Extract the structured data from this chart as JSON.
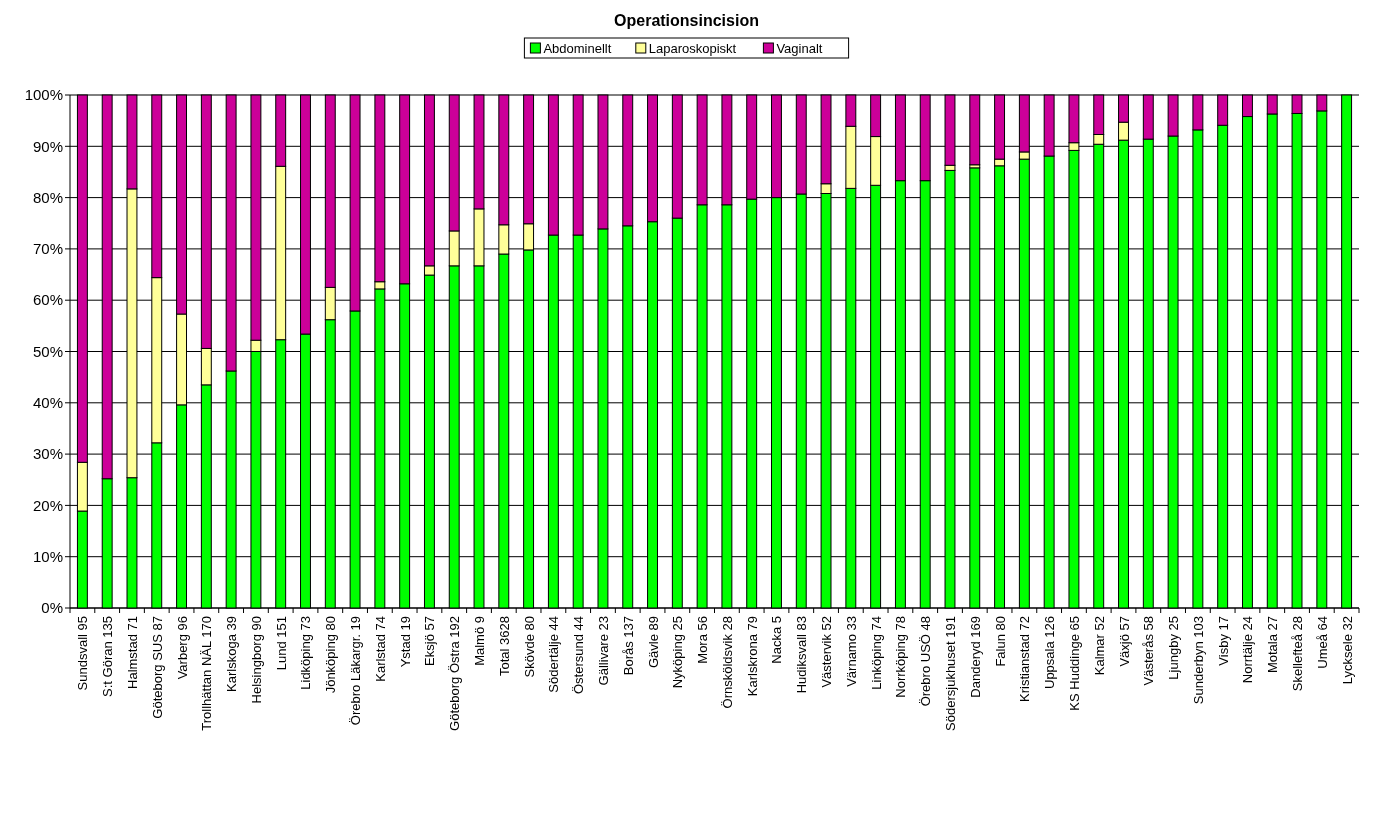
{
  "chart_data": {
    "type": "bar",
    "title": "Operationsincision",
    "stacked": true,
    "grid": "y",
    "legend": "top",
    "categories": [
      "Sundsvall 95",
      "S:t Göran 135",
      "Halmstad 71",
      "Göteborg SUS 87",
      "Varberg 96",
      "Trollhättan NÄL 170",
      "Karlskoga 39",
      "Helsingborg 90",
      "Lund 151",
      "Lidköping 73",
      "Jönköping 80",
      "Örebro Läkargr. 19",
      "Karlstad 74",
      "Ystad 19",
      "Eksjö 57",
      "Göteborg Östra 192",
      "Malmö 9",
      "Total 3628",
      "Skövde 80",
      "Södertälje 44",
      "Östersund 44",
      "Gällivare 23",
      "Borås 137",
      "Gävle 89",
      "Nyköping 25",
      "Mora 56",
      "Örnsköldsvik 28",
      "Karlskrona 79",
      "Nacka 5",
      "Hudiksvall 83",
      "Västervik 52",
      "Värnamo 33",
      "Linköping 74",
      "Norrköping 78",
      "Örebro USÖ 48",
      "Södersjukhuset 191",
      "Danderyd 169",
      "Falun 80",
      "Kristianstad 72",
      "Uppsala 126",
      "KS Huddinge 65",
      "Kalmar 52",
      "Växjö 57",
      "Västerås 58",
      "Ljungby 25",
      "Sunderbyn 103",
      "Visby 17",
      "Norrtälje 24",
      "Motala 27",
      "Skellefteå 28",
      "Umeå 64",
      "Lycksele 32"
    ],
    "series": [
      {
        "name": "Abdominellt",
        "color": "#00ff00",
        "values": [
          18.9,
          25.2,
          25.4,
          32.2,
          39.6,
          43.5,
          46.2,
          50.0,
          52.3,
          53.4,
          56.2,
          57.9,
          62.2,
          63.2,
          64.9,
          66.7,
          66.7,
          69.0,
          69.8,
          72.7,
          72.7,
          73.9,
          74.5,
          75.3,
          76.0,
          78.6,
          78.6,
          79.7,
          80.0,
          80.7,
          80.8,
          81.8,
          82.4,
          83.3,
          83.3,
          85.3,
          85.8,
          86.2,
          87.5,
          88.1,
          89.2,
          90.4,
          91.2,
          91.4,
          92.0,
          93.2,
          94.1,
          95.8,
          96.3,
          96.4,
          96.9,
          100
        ]
      },
      {
        "name": "Laparoskopiskt",
        "color": "#ffff99",
        "values": [
          9.5,
          0,
          56.3,
          32.2,
          17.7,
          7.1,
          0,
          2.2,
          33.8,
          0,
          6.3,
          0,
          1.4,
          0,
          1.8,
          6.8,
          11.1,
          5.7,
          5.1,
          0,
          0,
          0,
          0,
          0,
          0,
          0,
          0,
          0,
          0,
          0,
          1.9,
          12.1,
          9.5,
          0,
          0,
          1.0,
          0.6,
          1.3,
          1.4,
          0,
          1.5,
          1.9,
          3.5,
          0,
          0,
          0,
          0,
          0,
          0,
          0,
          0,
          0
        ]
      },
      {
        "name": "Vaginalt",
        "color": "#cc0099",
        "values": [
          71.6,
          74.8,
          18.3,
          35.6,
          42.7,
          49.4,
          53.8,
          47.8,
          13.9,
          46.6,
          37.5,
          42.1,
          36.4,
          36.8,
          33.3,
          26.5,
          22.2,
          25.3,
          25.1,
          27.3,
          27.3,
          26.1,
          25.5,
          24.7,
          24.0,
          21.4,
          21.4,
          20.3,
          20.0,
          19.3,
          17.3,
          6.1,
          8.1,
          16.7,
          16.7,
          13.7,
          13.6,
          12.5,
          11.1,
          11.9,
          9.3,
          7.7,
          5.3,
          8.6,
          8.0,
          6.8,
          5.9,
          4.2,
          3.7,
          3.6,
          3.1,
          0
        ]
      }
    ],
    "ylim": [
      0,
      100
    ],
    "yticks": [
      {
        "value": 0,
        "label": "0%"
      },
      {
        "value": 10,
        "label": "10%"
      },
      {
        "value": 20,
        "label": "20%"
      },
      {
        "value": 30,
        "label": "30%"
      },
      {
        "value": 40,
        "label": "40%"
      },
      {
        "value": 50,
        "label": "50%"
      },
      {
        "value": 60,
        "label": "60%"
      },
      {
        "value": 70,
        "label": "70%"
      },
      {
        "value": 80,
        "label": "80%"
      },
      {
        "value": 90,
        "label": "90%"
      },
      {
        "value": 100,
        "label": "100%"
      }
    ]
  }
}
